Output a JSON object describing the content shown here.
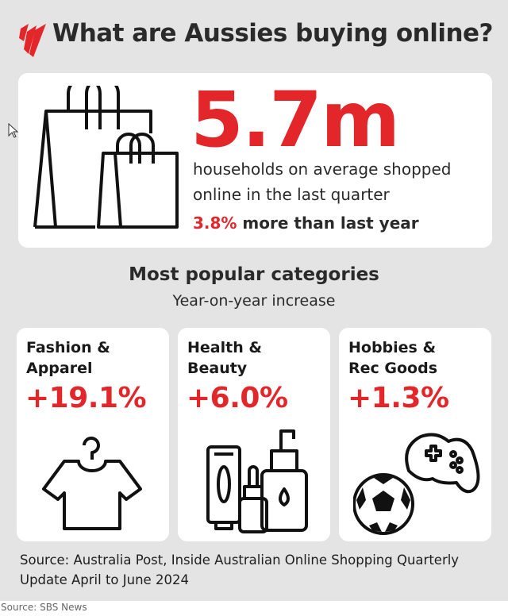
{
  "header": {
    "title": "What are Aussies buying online?",
    "logo": "SBS logo"
  },
  "headline": {
    "value": "5.7m",
    "line1": "households on average shopped",
    "line2": "online in the last quarter",
    "change": "3.8%",
    "change_suffix": " more than last year",
    "icon": "shopping-bags-icon"
  },
  "section": {
    "title": "Most popular categories",
    "subtitle": "Year-on-year increase"
  },
  "categories": [
    {
      "line1": "Fashion &",
      "line2": "Apparel",
      "value": "+19.1%",
      "icon": "tshirt-hanger-icon"
    },
    {
      "line1": "Health &",
      "line2": "Beauty",
      "value": "+6.0%",
      "icon": "cosmetics-bottles-icon"
    },
    {
      "line1": "Hobbies &",
      "line2": "Rec Goods",
      "value": "+1.3%",
      "icon": "soccer-ball-gamepad-icon"
    }
  ],
  "source": {
    "line1": "Source: Australia Post, Inside Australian Online Shopping Quarterly",
    "line2": "Update April to June 2024"
  },
  "footer": {
    "credit": "Source: SBS News"
  },
  "colors": {
    "accent": "#e3262a",
    "background": "#e4e4e4",
    "card": "#ffffff",
    "text": "#2a2a2a"
  }
}
